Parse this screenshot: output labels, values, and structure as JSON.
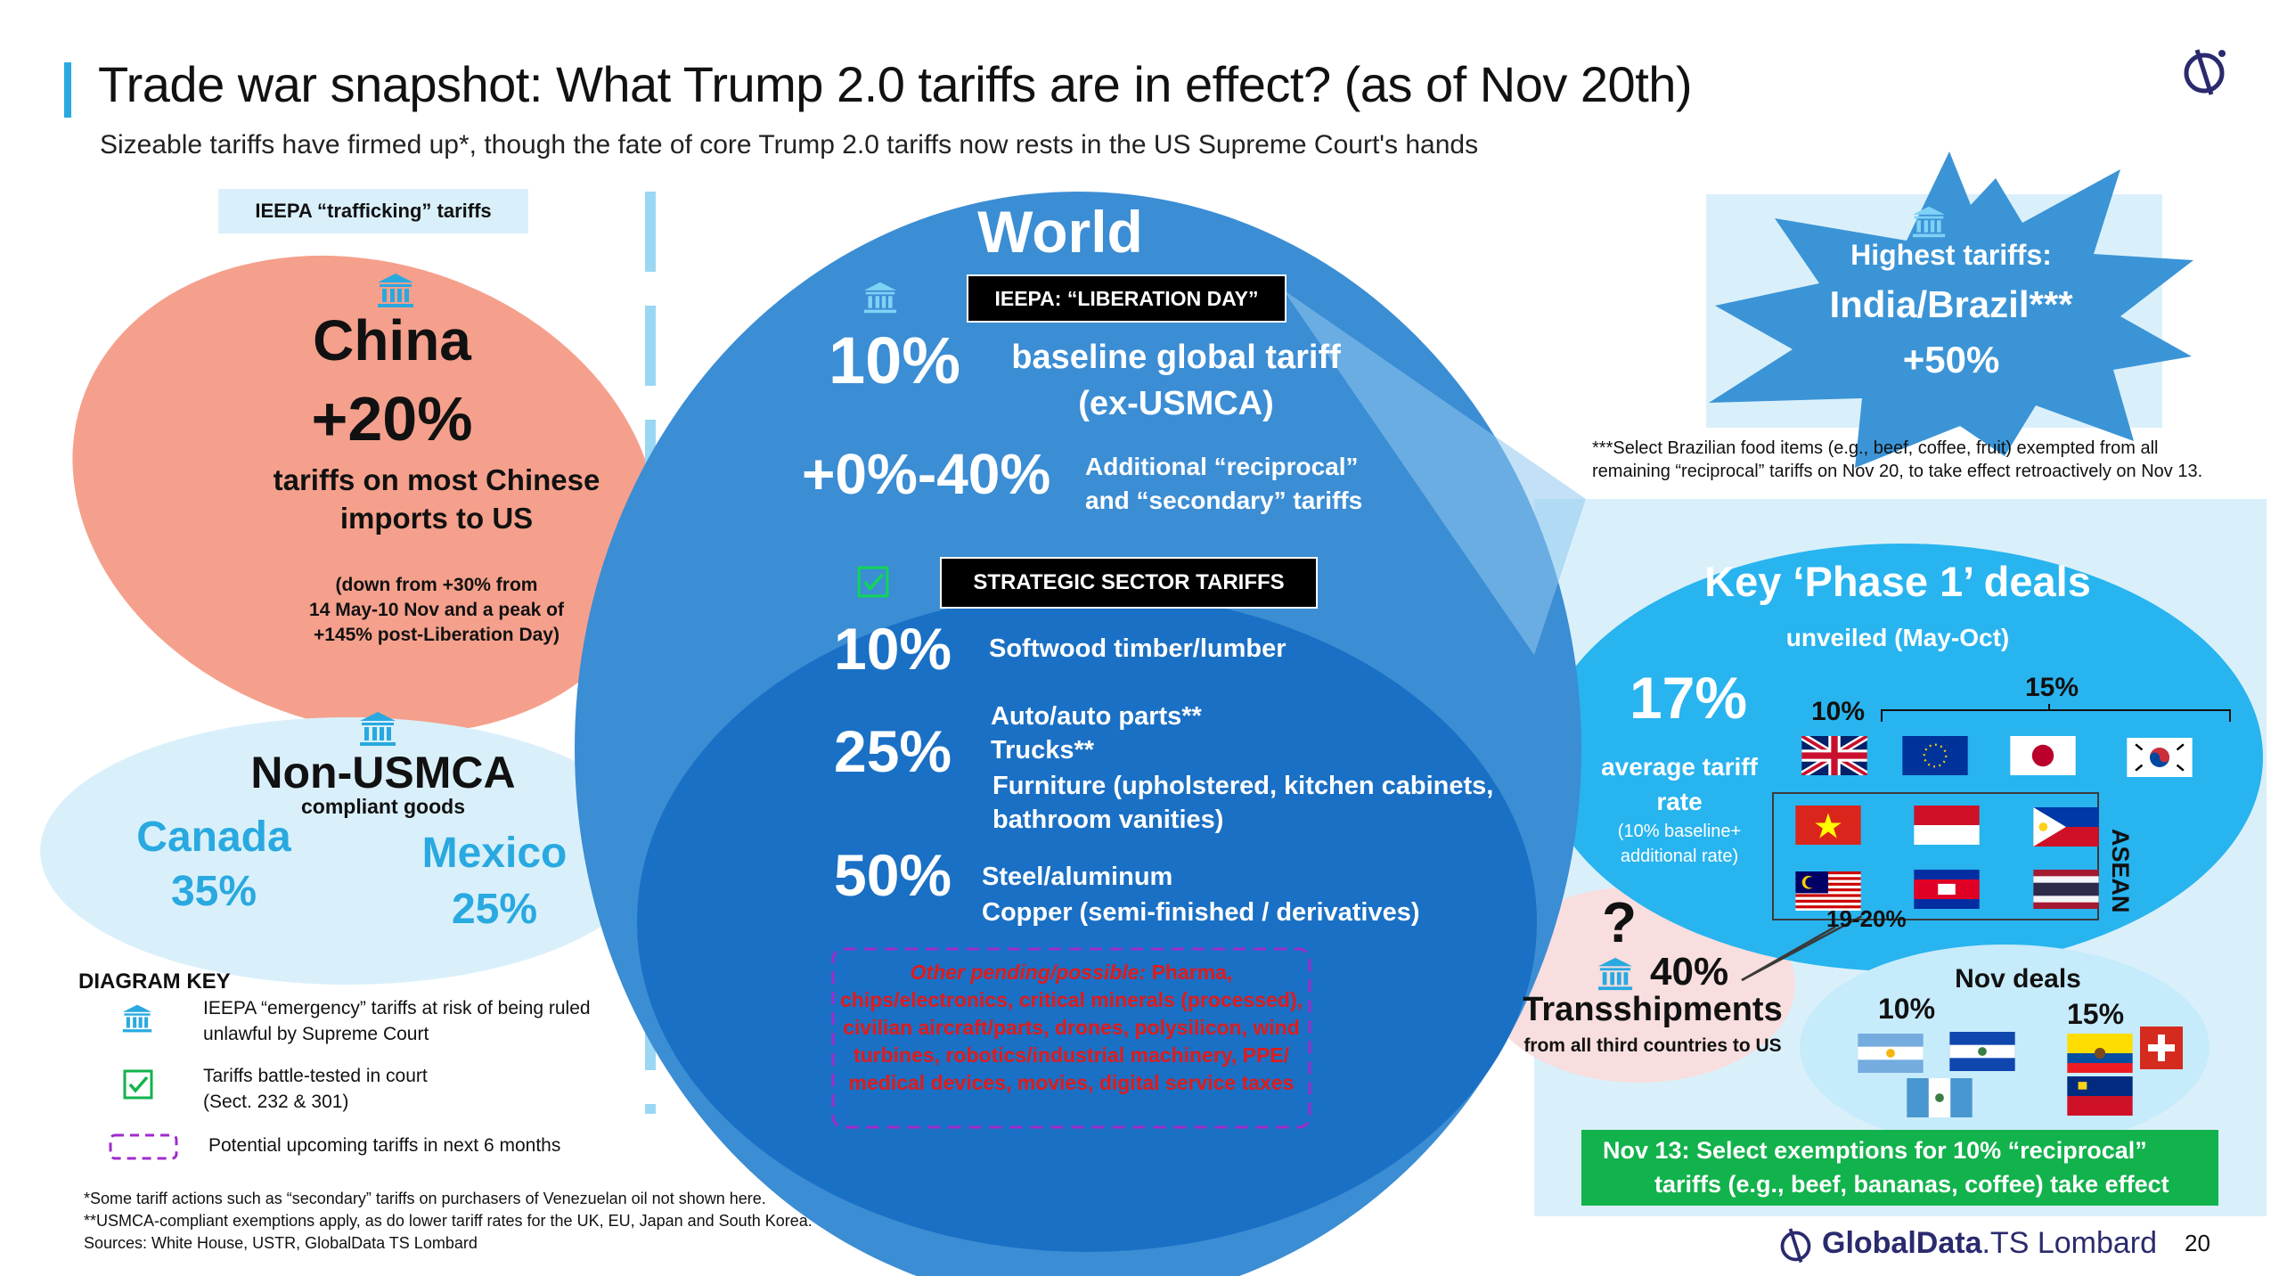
{
  "header": {
    "title": "Trade war snapshot: What Trump 2.0 tariffs are in effect? (as of Nov 20th)",
    "subtitle": "Sizeable tariffs have firmed up*, though the fate of core Trump 2.0 tariffs now rests in the US Supreme Court's hands"
  },
  "china": {
    "tag": "IEEPA “trafficking” tariffs",
    "name": "China",
    "rate": "+20%",
    "desc_1": "tariffs on most Chinese",
    "desc_2": "imports to US",
    "note_1": "(down from +30% from",
    "note_2": "14 May-10 Nov and a peak of",
    "note_3": "+145% post-Liberation Day)"
  },
  "non_usmca": {
    "title": "Non-USMCA",
    "sub": "compliant goods",
    "canada": "Canada",
    "canada_rate": "35%",
    "mexico": "Mexico",
    "mexico_rate": "25%"
  },
  "world": {
    "title": "World",
    "liberation_label": "IEEPA: “LIBERATION DAY”",
    "baseline_rate": "10%",
    "baseline_1": "baseline global tariff",
    "baseline_2": "(ex-USMCA)",
    "reciprocal_rate": "+0%-40%",
    "reciprocal_1": "Additional “reciprocal”",
    "reciprocal_2": "and “secondary” tariffs",
    "strategic_label": "STRATEGIC SECTOR TARIFFS",
    "lumber_rate": "10%",
    "lumber": "Softwood timber/lumber",
    "auto_rate": "25%",
    "auto_1": "Auto/auto parts**",
    "auto_2": "Trucks**",
    "auto_3": "Furniture (upholstered, kitchen cabinets,",
    "auto_4": "bathroom vanities)",
    "steel_rate": "50%",
    "steel_1": "Steel/aluminum",
    "steel_2": "Copper (semi-finished / derivatives)",
    "pending_head": "Other pending/possible:",
    "pending_1": "Pharma,",
    "pending_2": "chips/electronics, critical minerals (processed),",
    "pending_3": "civilian aircraft/parts, drones, polysilicon, wind",
    "pending_4": "turbines, robotics/industrial machinery, PPE/",
    "pending_5": "medical devices, movies, digital service taxes"
  },
  "highest": {
    "label": "Highest tariffs:",
    "countries": "India/Brazil***",
    "rate": "+50%",
    "note_1": "***Select Brazilian food items (e.g., beef, coffee, fruit) exempted from all",
    "note_2": "remaining “reciprocal” tariffs on Nov 20, to take effect retroactively on Nov 13."
  },
  "phase1": {
    "title": "Key ‘Phase 1’ deals",
    "sub": "unveiled (May-Oct)",
    "avg_rate": "17%",
    "avg_1": "average tariff",
    "avg_2": "rate",
    "avg_note_1": "(10% baseline+",
    "avg_note_2": "additional rate)",
    "r10": "10%",
    "r15": "15%",
    "r1920": "19-20%",
    "asean": "ASEAN"
  },
  "transship": {
    "q": "?",
    "rate": "40%",
    "title": "Transshipments",
    "sub": "from all third countries to US"
  },
  "nov_deals": {
    "title": "Nov deals",
    "r10": "10%",
    "r15": "15%"
  },
  "nov13": {
    "line_1": "Nov 13:  Select exemptions for 10% “reciprocal”",
    "line_2": "tariffs (e.g., beef, bananas, coffee) take effect"
  },
  "key": {
    "title": "DIAGRAM KEY",
    "item1_a": "IEEPA “emergency” tariffs at risk of being ruled",
    "item1_b": "unlawful by Supreme Court",
    "item2_a": "Tariffs battle-tested in court",
    "item2_b": "(Sect. 232 & 301)",
    "item3": "Potential upcoming tariffs in next 6 months"
  },
  "footnotes": {
    "f1": "*Some tariff actions such as “secondary” tariffs on purchasers of Venezuelan oil not shown here.",
    "f2": "**USMCA-compliant exemptions apply, as do lower tariff rates for the UK, EU, Japan and South Korea.",
    "f3": "Sources: White House, USTR, GlobalData TS Lombard"
  },
  "brand": {
    "name_bold": "GlobalData",
    "name_light": ".TS Lombard",
    "page": "20"
  },
  "colors": {
    "accent": "#29a9e0",
    "world_outer": "#3b8dd4",
    "world_inner": "#1a6fc2",
    "china": "#f5a08c",
    "usmca": "#d9f0fb",
    "phase1": "#28b4ef",
    "transship": "#f8dede",
    "green": "#12b24c",
    "pending_red": "#e01b1b"
  },
  "icons": [
    "bank-icon",
    "check-icon",
    "dashed-box-icon",
    "logo-icon"
  ]
}
